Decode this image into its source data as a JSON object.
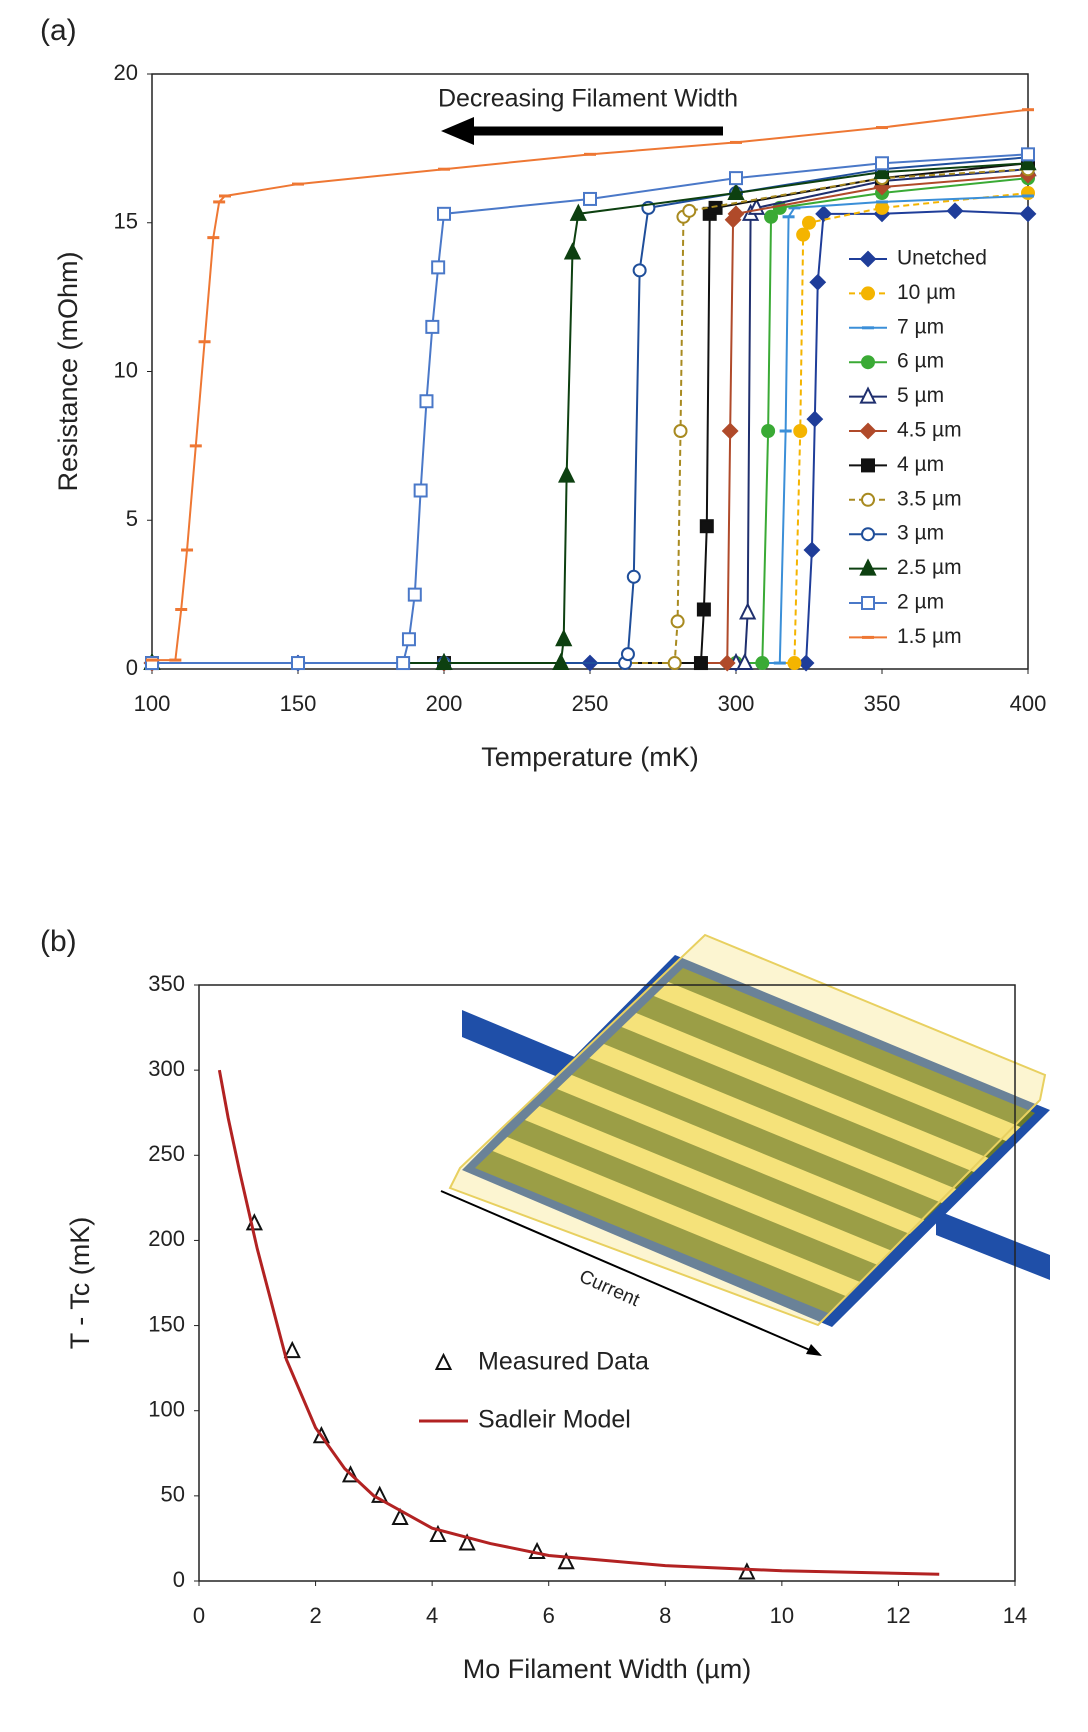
{
  "chart_data": [
    {
      "type": "line",
      "panel": "(a)",
      "xlabel": "Temperature (mK)",
      "ylabel": "Resistance (mOhm)",
      "annotation": "Decreasing Filament Width",
      "xlim": [
        100,
        400
      ],
      "ylim": [
        0,
        20
      ],
      "xticks": [
        100,
        150,
        200,
        250,
        300,
        350,
        400
      ],
      "yticks": [
        0,
        5,
        10,
        15,
        20
      ],
      "grid": false,
      "legend": "right",
      "series": [
        {
          "name": "Unetched",
          "color": "#1f3d99",
          "marker": "diamond",
          "filled": true,
          "dashed": false,
          "x": [
            100,
            150,
            200,
            250,
            300,
            324,
            326,
            327,
            328,
            330,
            350,
            375,
            400
          ],
          "values": [
            0.2,
            0.2,
            0.2,
            0.2,
            0.2,
            0.2,
            4,
            8.4,
            13,
            15.3,
            15.3,
            15.4,
            15.3
          ]
        },
        {
          "name": "10 µm",
          "color": "#f4b400",
          "marker": "circle",
          "filled": true,
          "dashed": true,
          "x": [
            100,
            200,
            300,
            320,
            322,
            323,
            325,
            350,
            400
          ],
          "values": [
            0.2,
            0.2,
            0.2,
            0.2,
            8,
            14.6,
            15.0,
            15.5,
            16.0
          ]
        },
        {
          "name": "7 µm",
          "color": "#3b8fd8",
          "marker": "dash",
          "filled": true,
          "dashed": false,
          "x": [
            100,
            200,
            300,
            315,
            317,
            318,
            320,
            350,
            400
          ],
          "values": [
            0.2,
            0.2,
            0.2,
            0.2,
            8,
            15.2,
            15.5,
            15.7,
            15.9
          ]
        },
        {
          "name": "6 µm",
          "color": "#3aaa35",
          "marker": "circle",
          "filled": true,
          "dashed": false,
          "x": [
            100,
            200,
            300,
            309,
            311,
            312,
            315,
            350,
            400
          ],
          "values": [
            0.2,
            0.2,
            0.2,
            0.2,
            8,
            15.2,
            15.5,
            16,
            16.5
          ]
        },
        {
          "name": "5 µm",
          "color": "#1f2f6e",
          "marker": "triangle",
          "filled": false,
          "dashed": false,
          "x": [
            100,
            200,
            300,
            303,
            304,
            305,
            307,
            350,
            400
          ],
          "values": [
            0.2,
            0.2,
            0.2,
            0.2,
            1.9,
            15.3,
            15.5,
            16.4,
            16.8
          ]
        },
        {
          "name": "4.5 µm",
          "color": "#b04a2a",
          "marker": "diamond",
          "filled": true,
          "dashed": false,
          "x": [
            100,
            200,
            297,
            298,
            299,
            300,
            350,
            400
          ],
          "values": [
            0.2,
            0.2,
            0.2,
            8,
            15.1,
            15.3,
            16.2,
            16.6
          ]
        },
        {
          "name": "4 µm",
          "color": "#111111",
          "marker": "square",
          "filled": true,
          "dashed": false,
          "x": [
            100,
            200,
            288,
            289,
            290,
            291,
            293,
            350,
            400
          ],
          "values": [
            0.2,
            0.2,
            0.2,
            2,
            4.8,
            15.3,
            15.5,
            16.5,
            17.0
          ]
        },
        {
          "name": "3.5 µm",
          "color": "#a88a20",
          "marker": "circle",
          "filled": false,
          "dashed": true,
          "x": [
            100,
            200,
            279,
            280,
            281,
            282,
            284,
            350,
            400
          ],
          "values": [
            0.2,
            0.2,
            0.2,
            1.6,
            8,
            15.2,
            15.4,
            16.5,
            16.8
          ]
        },
        {
          "name": "3 µm",
          "color": "#1f4e9a",
          "marker": "circle",
          "filled": false,
          "dashed": false,
          "x": [
            100,
            200,
            262,
            263,
            265,
            267,
            270,
            300,
            350,
            400
          ],
          "values": [
            0.2,
            0.2,
            0.2,
            0.5,
            3.1,
            13.4,
            15.5,
            16,
            16.8,
            17.2
          ]
        },
        {
          "name": "2.5 µm",
          "color": "#0d4010",
          "marker": "triangle",
          "filled": true,
          "dashed": false,
          "x": [
            100,
            200,
            240,
            241,
            242,
            244,
            246,
            300,
            350,
            400
          ],
          "values": [
            0.2,
            0.2,
            0.2,
            1,
            6.5,
            14.0,
            15.3,
            16,
            16.7,
            17.0
          ]
        },
        {
          "name": "2 µm",
          "color": "#4a78c8",
          "marker": "square",
          "filled": false,
          "dashed": false,
          "x": [
            100,
            150,
            186,
            188,
            190,
            192,
            194,
            196,
            198,
            200,
            250,
            300,
            350,
            400
          ],
          "values": [
            0.2,
            0.2,
            0.2,
            1,
            2.5,
            6,
            9,
            11.5,
            13.5,
            15.3,
            15.8,
            16.5,
            17,
            17.3
          ]
        },
        {
          "name": "1.5 µm",
          "color": "#ee7733",
          "marker": "dash",
          "filled": true,
          "dashed": false,
          "x": [
            100,
            108,
            110,
            112,
            115,
            118,
            121,
            123,
            125,
            150,
            200,
            250,
            300,
            350,
            400
          ],
          "values": [
            0.3,
            0.3,
            2,
            4,
            7.5,
            11,
            14.5,
            15.7,
            15.9,
            16.3,
            16.8,
            17.3,
            17.7,
            18.2,
            18.8
          ]
        }
      ]
    },
    {
      "type": "scatter",
      "panel": "(b)",
      "xlabel": "Mo Filament Width (µm)",
      "ylabel": "T - Tc (mK)",
      "inset_label": "Current",
      "xlim": [
        0,
        14
      ],
      "ylim": [
        0,
        350
      ],
      "xticks": [
        0,
        2,
        4,
        6,
        8,
        10,
        12,
        14
      ],
      "yticks": [
        0,
        50,
        100,
        150,
        200,
        250,
        300,
        350
      ],
      "grid": false,
      "legend": "center",
      "series": [
        {
          "name": "Measured Data",
          "type": "scatter",
          "color": "#111111",
          "marker": "triangle",
          "filled": false,
          "dashed": false,
          "x": [
            0.95,
            1.6,
            2.1,
            2.6,
            3.1,
            3.45,
            4.1,
            4.6,
            5.8,
            6.3,
            9.4
          ],
          "values": [
            210,
            135,
            85,
            62,
            50,
            37,
            27,
            22,
            17,
            11,
            5
          ]
        },
        {
          "name": "Sadleir Model",
          "type": "line",
          "color": "#b22222",
          "marker": "none",
          "filled": true,
          "dashed": false,
          "x": [
            0.35,
            0.5,
            0.7,
            1,
            1.5,
            2,
            2.5,
            3,
            4,
            5,
            6,
            8,
            10,
            12.7
          ],
          "values": [
            300,
            272,
            240,
            195,
            130,
            90,
            66,
            50,
            31,
            22,
            15,
            9,
            6,
            4
          ]
        }
      ]
    }
  ]
}
